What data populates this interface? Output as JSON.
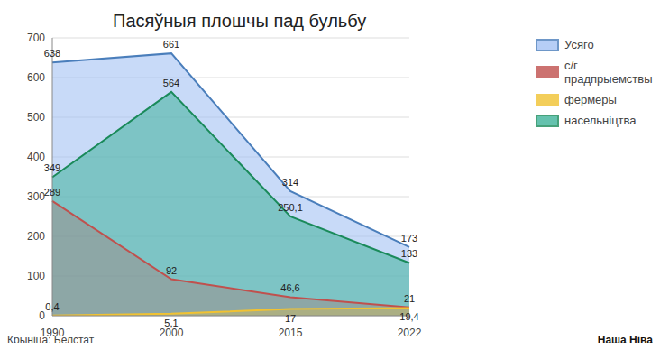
{
  "chart_data": {
    "type": "area",
    "title": "Пасяўныя плошчы пад бульбу",
    "source": "Крыніца: Белстат",
    "watermark": "Наша Ніва",
    "categories": [
      "1990",
      "2000",
      "2015",
      "2022"
    ],
    "series": [
      {
        "name": "Усяго",
        "color": "#4a7ebb",
        "values": [
          638,
          661,
          314,
          173
        ],
        "value_labels": [
          "638",
          "661",
          "314",
          "173"
        ]
      },
      {
        "name": "с/г прадпрыемствы",
        "color": "#c0504d",
        "values": [
          289,
          92,
          46.6,
          21
        ],
        "value_labels": [
          "289",
          "92",
          "46,6",
          "21"
        ]
      },
      {
        "name": "фермеры",
        "color": "#f1c232",
        "values": [
          0.4,
          5.1,
          17,
          19.4
        ],
        "value_labels": [
          "0,4",
          "5,1",
          "17",
          "19,4"
        ]
      },
      {
        "name": "насельніцтва",
        "color": "#1a8a5a",
        "values": [
          349,
          564,
          250.1,
          133
        ],
        "value_labels": [
          "349",
          "564",
          "250,1",
          "133"
        ]
      }
    ],
    "ylim": [
      0,
      700
    ],
    "yticks": [
      0,
      100,
      200,
      300,
      400,
      500,
      600,
      700
    ],
    "grid": true,
    "legend": "right",
    "data_labels": true
  }
}
